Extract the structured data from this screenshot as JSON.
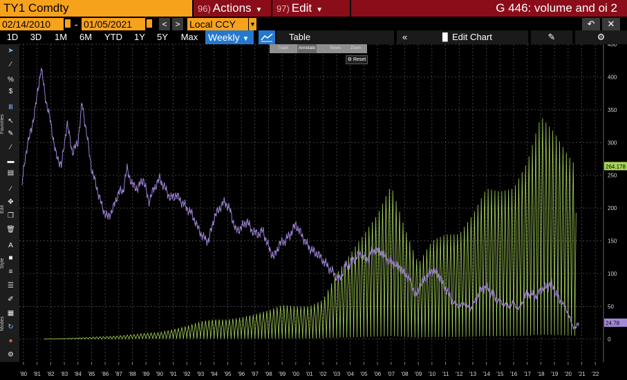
{
  "header": {
    "ticker": "TY1 Comdty",
    "actions_key": "96)",
    "actions_label": "Actions",
    "edit_key": "97)",
    "edit_label": "Edit",
    "title": "G 446: volume and oi 2"
  },
  "range": {
    "start_date": "02/14/2010",
    "end_date": "01/05/2021",
    "currency": "Local CCY"
  },
  "periods": [
    "1D",
    "3D",
    "1M",
    "6M",
    "YTD",
    "1Y",
    "5Y",
    "Max"
  ],
  "frequency": "Weekly",
  "toolbar": {
    "table_label": "Table",
    "edit_chart_label": "Edit Chart",
    "track_label": "Track",
    "annotate_label": "Annotate",
    "news_label": "News",
    "zoom_label": "Zoom",
    "reset_label": "Reset"
  },
  "sidebar": {
    "favorites_label": "Favorites",
    "edit_label": "Edit",
    "style_label": "Style",
    "modes_label": "Modes"
  },
  "colors": {
    "orange": "#f7a21b",
    "maroon": "#8b0d1a",
    "blue": "#2478d0",
    "green_series": "#a8d65a",
    "purple_series": "#9a7fd0",
    "green_label_bg": "#a8d65a",
    "purple_label_bg": "#a58ad8"
  },
  "chart_data": {
    "type": "line",
    "xlabel": "",
    "ylabel": "",
    "x_tick_labels": [
      "'80",
      "'81",
      "'82",
      "'83",
      "'84",
      "'85",
      "'86",
      "'87",
      "'88",
      "'89",
      "'90",
      "'91",
      "'92",
      "'93",
      "'94",
      "'95",
      "'96",
      "'97",
      "'98",
      "'99",
      "'00",
      "'01",
      "'02",
      "'03",
      "'04",
      "'05",
      "'06",
      "'07",
      "'08",
      "'09",
      "'10",
      "'11",
      "'12",
      "'13",
      "'14",
      "'15",
      "'16",
      "'17",
      "'18",
      "'19",
      "'20",
      "'21",
      "'22"
    ],
    "ylim": [
      -35,
      450
    ],
    "y_ticks": [
      0,
      50,
      100,
      150,
      200,
      250,
      300,
      350,
      400,
      450
    ],
    "y_tick_labels": [
      "0",
      "50",
      "100",
      "150",
      "200",
      "250",
      "300",
      "350",
      "400",
      "450"
    ],
    "grid": true,
    "xlim": [
      1979.7,
      2022.6
    ],
    "series": [
      {
        "kind": "oscillating-area",
        "last_value_label": "264.178",
        "points": [
          [
            1981.5,
            0
          ],
          [
            1983,
            1
          ],
          [
            1985,
            3
          ],
          [
            1987,
            5
          ],
          [
            1989,
            9
          ],
          [
            1990,
            10
          ],
          [
            1991,
            15
          ],
          [
            1992,
            20
          ],
          [
            1993,
            27
          ],
          [
            1994,
            30
          ],
          [
            1995,
            30
          ],
          [
            1996,
            33
          ],
          [
            1997,
            38
          ],
          [
            1998,
            44
          ],
          [
            1999,
            52
          ],
          [
            2000,
            50
          ],
          [
            2001,
            50
          ],
          [
            2002,
            60
          ],
          [
            2003,
            100
          ],
          [
            2004,
            130
          ],
          [
            2005,
            160
          ],
          [
            2006,
            190
          ],
          [
            2007,
            235
          ],
          [
            2008,
            170
          ],
          [
            2009,
            115
          ],
          [
            2010,
            150
          ],
          [
            2011,
            160
          ],
          [
            2012,
            160
          ],
          [
            2013,
            190
          ],
          [
            2014,
            230
          ],
          [
            2015,
            225
          ],
          [
            2016,
            230
          ],
          [
            2017,
            270
          ],
          [
            2018,
            340
          ],
          [
            2019,
            315
          ],
          [
            2020,
            280
          ],
          [
            2020.6,
            264
          ]
        ]
      },
      {
        "kind": "line",
        "last_value_label": "24.78",
        "points": [
          [
            1979.9,
            240
          ],
          [
            1980.3,
            300
          ],
          [
            1980.6,
            320
          ],
          [
            1981.0,
            370
          ],
          [
            1981.3,
            415
          ],
          [
            1981.6,
            370
          ],
          [
            1982.0,
            330
          ],
          [
            1982.4,
            280
          ],
          [
            1982.8,
            265
          ],
          [
            1983.2,
            330
          ],
          [
            1983.6,
            285
          ],
          [
            1984.0,
            300
          ],
          [
            1984.3,
            360
          ],
          [
            1984.6,
            320
          ],
          [
            1985.0,
            260
          ],
          [
            1985.4,
            230
          ],
          [
            1985.8,
            200
          ],
          [
            1986.2,
            185
          ],
          [
            1986.6,
            200
          ],
          [
            1987.0,
            225
          ],
          [
            1987.3,
            225
          ],
          [
            1987.6,
            260
          ],
          [
            1988.0,
            235
          ],
          [
            1988.4,
            230
          ],
          [
            1988.8,
            245
          ],
          [
            1989.2,
            210
          ],
          [
            1989.6,
            230
          ],
          [
            1990.0,
            245
          ],
          [
            1990.4,
            230
          ],
          [
            1990.8,
            215
          ],
          [
            1991.2,
            220
          ],
          [
            1991.6,
            210
          ],
          [
            1992.0,
            200
          ],
          [
            1992.4,
            190
          ],
          [
            1992.8,
            170
          ],
          [
            1993.2,
            155
          ],
          [
            1993.6,
            150
          ],
          [
            1994.0,
            185
          ],
          [
            1994.4,
            200
          ],
          [
            1994.8,
            210
          ],
          [
            1995.2,
            195
          ],
          [
            1995.6,
            165
          ],
          [
            1996.0,
            170
          ],
          [
            1996.4,
            180
          ],
          [
            1996.8,
            165
          ],
          [
            1997.2,
            160
          ],
          [
            1997.6,
            165
          ],
          [
            1998.0,
            140
          ],
          [
            1998.4,
            125
          ],
          [
            1998.8,
            145
          ],
          [
            1999.2,
            150
          ],
          [
            1999.6,
            160
          ],
          [
            2000.0,
            175
          ],
          [
            2000.4,
            160
          ],
          [
            2000.8,
            145
          ],
          [
            2001.2,
            135
          ],
          [
            2001.6,
            130
          ],
          [
            2002.0,
            120
          ],
          [
            2002.4,
            110
          ],
          [
            2002.8,
            100
          ],
          [
            2003.2,
            90
          ],
          [
            2003.6,
            110
          ],
          [
            2004.0,
            115
          ],
          [
            2004.4,
            125
          ],
          [
            2004.8,
            130
          ],
          [
            2005.2,
            120
          ],
          [
            2005.6,
            135
          ],
          [
            2006.0,
            135
          ],
          [
            2006.4,
            130
          ],
          [
            2006.8,
            120
          ],
          [
            2007.2,
            115
          ],
          [
            2007.6,
            110
          ],
          [
            2008.0,
            100
          ],
          [
            2008.4,
            90
          ],
          [
            2008.8,
            65
          ],
          [
            2009.2,
            85
          ],
          [
            2009.6,
            95
          ],
          [
            2010.0,
            105
          ],
          [
            2010.4,
            100
          ],
          [
            2010.8,
            85
          ],
          [
            2011.2,
            70
          ],
          [
            2011.6,
            55
          ],
          [
            2012.0,
            50
          ],
          [
            2012.4,
            55
          ],
          [
            2012.8,
            45
          ],
          [
            2013.2,
            60
          ],
          [
            2013.6,
            75
          ],
          [
            2014.0,
            80
          ],
          [
            2014.4,
            70
          ],
          [
            2014.8,
            60
          ],
          [
            2015.2,
            55
          ],
          [
            2015.6,
            50
          ],
          [
            2016.0,
            55
          ],
          [
            2016.4,
            45
          ],
          [
            2016.8,
            65
          ],
          [
            2017.2,
            70
          ],
          [
            2017.6,
            65
          ],
          [
            2018.0,
            75
          ],
          [
            2018.4,
            80
          ],
          [
            2018.8,
            85
          ],
          [
            2019.2,
            65
          ],
          [
            2019.6,
            55
          ],
          [
            2020.0,
            40
          ],
          [
            2020.3,
            20
          ],
          [
            2020.6,
            18
          ],
          [
            2020.8,
            25
          ]
        ]
      }
    ]
  }
}
